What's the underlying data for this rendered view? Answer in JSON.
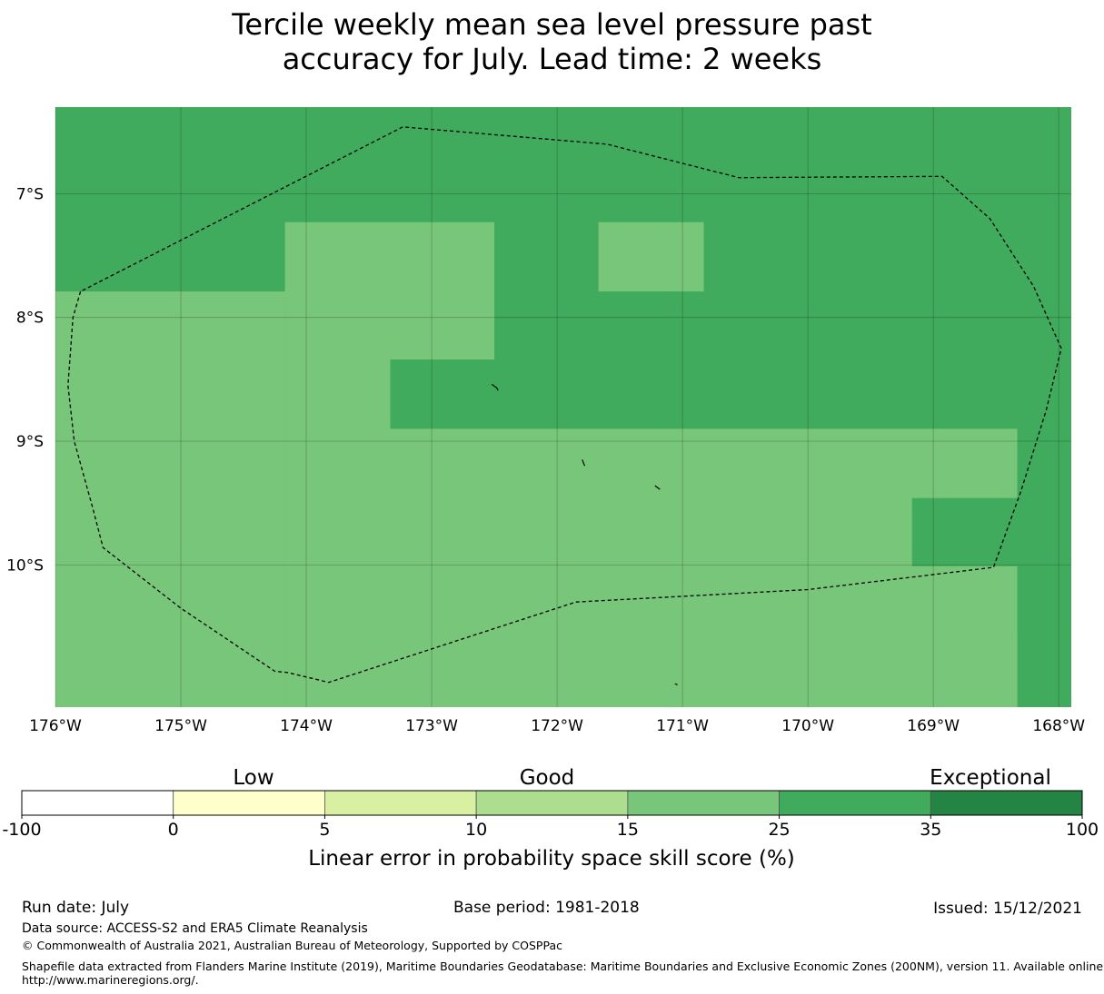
{
  "title": {
    "line1": "Tercile weekly mean sea level pressure past",
    "line2": "accuracy for July. Lead time: 2 weeks"
  },
  "map": {
    "lat_labels": [
      "7°S",
      "8°S",
      "9°S",
      "10°S"
    ],
    "lon_labels": [
      "176°W",
      "175°W",
      "174°W",
      "173°W",
      "172°W",
      "171°W",
      "170°W",
      "169°W",
      "168°W"
    ],
    "extent": {
      "lon_min": -176.0,
      "lon_max": -167.9,
      "lat_min": -11.15,
      "lat_max": -6.3
    },
    "lat_ticks": [
      -7,
      -8,
      -9,
      -10
    ],
    "lon_ticks": [
      -176,
      -175,
      -174,
      -173,
      -172,
      -171,
      -170,
      -169,
      -168
    ],
    "regions": [
      {
        "category": "25-35",
        "color": "#41ab5d",
        "lon": [
          -176.0,
          -167.9
        ],
        "lat": [
          -6.3,
          -11.15
        ]
      },
      {
        "category": "15-25",
        "color": "#78c679",
        "lon": [
          -176.0,
          -174.17
        ],
        "lat": [
          -7.79,
          -11.15
        ]
      },
      {
        "category": "15-25",
        "color": "#78c679",
        "lon": [
          -174.17,
          -172.5
        ],
        "lat": [
          -7.23,
          -8.34
        ]
      },
      {
        "category": "15-25",
        "color": "#78c679",
        "lon": [
          -174.17,
          -173.33
        ],
        "lat": [
          -8.34,
          -11.15
        ]
      },
      {
        "category": "15-25",
        "color": "#78c679",
        "lon": [
          -173.33,
          -168.33
        ],
        "lat": [
          -8.9,
          -11.15
        ]
      },
      {
        "category": "15-25",
        "color": "#78c679",
        "lon": [
          -171.67,
          -170.83
        ],
        "lat": [
          -7.23,
          -7.79
        ]
      },
      {
        "category": "25-35",
        "color": "#41ab5d",
        "lon": [
          -169.17,
          -168.33
        ],
        "lat": [
          -9.46,
          -10.01
        ]
      },
      {
        "category": "25-35",
        "color": "#41ab5d",
        "lon": [
          -168.33,
          -167.9
        ],
        "lat": [
          -8.9,
          -10.57
        ]
      }
    ],
    "eez_boundary": [
      [
        -175.8,
        -7.79
      ],
      [
        -175.86,
        -8.0
      ],
      [
        -175.9,
        -8.55
      ],
      [
        -175.85,
        -9.0
      ],
      [
        -175.7,
        -9.55
      ],
      [
        -175.62,
        -9.86
      ],
      [
        -175.0,
        -10.35
      ],
      [
        -174.25,
        -10.86
      ],
      [
        -174.15,
        -10.87
      ],
      [
        -173.82,
        -10.95
      ],
      [
        -171.85,
        -10.3
      ],
      [
        -170.0,
        -10.2
      ],
      [
        -168.52,
        -10.02
      ],
      [
        -168.3,
        -9.4
      ],
      [
        -168.1,
        -8.75
      ],
      [
        -167.98,
        -8.25
      ],
      [
        -168.2,
        -7.75
      ],
      [
        -168.55,
        -7.2
      ],
      [
        -168.93,
        -6.86
      ],
      [
        -170.55,
        -6.87
      ],
      [
        -171.6,
        -6.6
      ],
      [
        -173.23,
        -6.46
      ],
      [
        -175.8,
        -7.79
      ]
    ],
    "islands": [
      [
        [
          -172.52,
          -8.54
        ],
        [
          -172.48,
          -8.57
        ],
        [
          -172.47,
          -8.59
        ]
      ],
      [
        [
          -171.8,
          -9.15
        ],
        [
          -171.78,
          -9.2
        ]
      ],
      [
        [
          -171.22,
          -9.36
        ],
        [
          -171.18,
          -9.39
        ]
      ],
      [
        [
          -171.06,
          -10.96
        ],
        [
          -171.04,
          -10.97
        ]
      ]
    ]
  },
  "colorbar": {
    "categories": [
      "Low",
      "Good",
      "Exceptional"
    ],
    "bounds": [
      "-100",
      "0",
      "5",
      "10",
      "15",
      "25",
      "35",
      "100"
    ],
    "colors": [
      "#ffffff",
      "#ffffcc",
      "#d9f0a3",
      "#addd8e",
      "#78c679",
      "#41ab5d",
      "#238443"
    ],
    "label": "Linear error in probability space skill score (%)"
  },
  "footer": {
    "run_date": "Run date: July",
    "base_period": "Base period: 1981-2018",
    "issued": "Issued: 15/12/2021",
    "data_source": "Data source: ACCESS-S2 and ERA5 Climate Reanalysis",
    "copyright": "© Commonwealth of Australia 2021, Australian Bureau of Meteorology, Supported by COSPPac",
    "shapefile_line1": "Shapefile data extracted from Flanders Marine Institute (2019), Maritime Boundaries Geodatabase: Maritime Boundaries and Exclusive Economic Zones (200NM), version 11. Available online at",
    "shapefile_line2": "http://www.marineregions.org/."
  }
}
